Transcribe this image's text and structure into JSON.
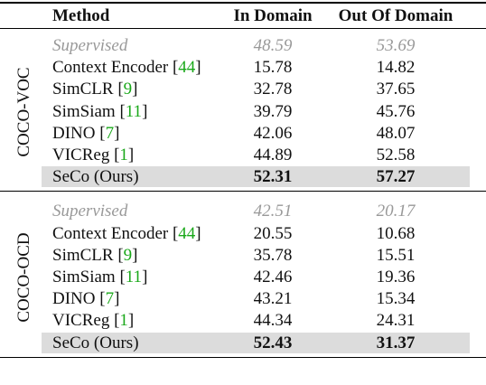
{
  "table": {
    "header": [
      "Method",
      "In Domain",
      "Out Of Domain"
    ],
    "groups": [
      {
        "name": "COCO-VOC",
        "rows": [
          {
            "method": "Supervised",
            "ref": null,
            "in": "48.59",
            "out": "53.69"
          },
          {
            "method": "Context Encoder",
            "ref": "[44]",
            "in": "15.78",
            "out": "14.82"
          },
          {
            "method": "SimCLR",
            "ref": "[9]",
            "in": "32.78",
            "out": "37.65"
          },
          {
            "method": "SimSiam",
            "ref": "[11]",
            "in": "39.79",
            "out": "45.76"
          },
          {
            "method": "DINO",
            "ref": "[7]",
            "in": "42.06",
            "out": "48.07"
          },
          {
            "method": "VICReg",
            "ref": "[1]",
            "in": "44.89",
            "out": "52.58"
          },
          {
            "method": "SeCo (Ours)",
            "ref": null,
            "in": "52.31",
            "out": "57.27"
          }
        ]
      },
      {
        "name": "COCO-OCD",
        "rows": [
          {
            "method": "Supervised",
            "ref": null,
            "in": "42.51",
            "out": "20.17"
          },
          {
            "method": "Context Encoder",
            "ref": "[44]",
            "in": "20.55",
            "out": "10.68"
          },
          {
            "method": "SimCLR",
            "ref": "[9]",
            "in": "35.78",
            "out": "15.51"
          },
          {
            "method": "SimSiam",
            "ref": "[11]",
            "in": "42.46",
            "out": "19.36"
          },
          {
            "method": "DINO",
            "ref": "[7]",
            "in": "43.21",
            "out": "15.34"
          },
          {
            "method": "VICReg",
            "ref": "[1]",
            "in": "44.34",
            "out": "24.31"
          },
          {
            "method": "SeCo (Ours)",
            "ref": null,
            "in": "52.43",
            "out": "31.37"
          }
        ]
      }
    ]
  }
}
